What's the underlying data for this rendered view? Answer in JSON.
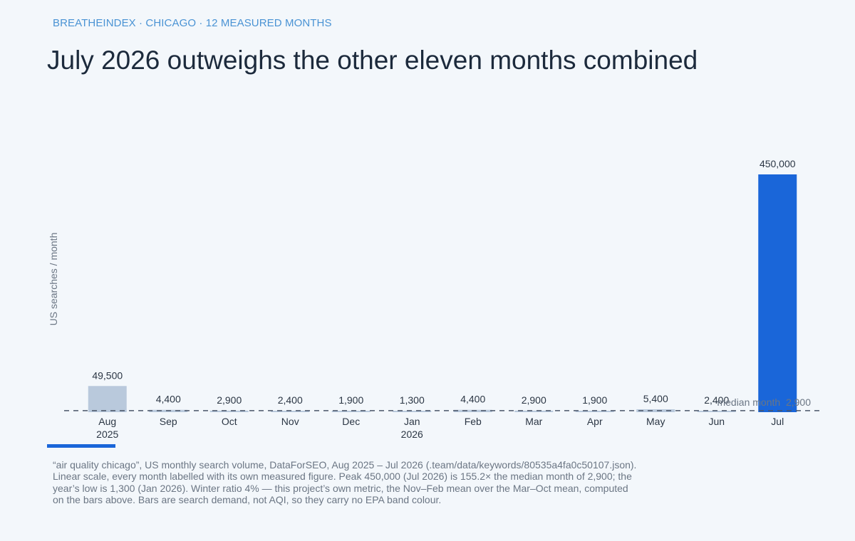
{
  "header": {
    "kicker": "BREATHEINDEX · CHICAGO · 12 MEASURED MONTHS",
    "title": "July 2026 outweighs the other eleven months combined"
  },
  "footnote": "“air quality chicago”, US monthly search volume, DataForSEO, Aug 2025 – Jul 2026 (.team/data/keywords/80535a4fa0c50107.json). Linear scale, every month labelled with its own measured figure. Peak 450,000 (Jul 2026) is 155.2× the median month of 2,900; the year’s low is 1,300 (Jan 2026). Winter ratio 4% — this project’s own metric, the Nov–Feb mean over the Mar–Oct mean, computed on the bars above. Bars are search demand, not AQI, so they carry no EPA band colour.",
  "colors": {
    "peak_bar": "#1a66d9",
    "other_bars": "#b9c9dc",
    "median_line": "#4a5568",
    "accent": "#1a66d9"
  },
  "chart_data": {
    "type": "bar",
    "ylabel": "US searches / month",
    "xlabel": "",
    "categories": [
      "Aug",
      "Sep",
      "Oct",
      "Nov",
      "Dec",
      "Jan",
      "Feb",
      "Mar",
      "Apr",
      "May",
      "Jun",
      "Jul"
    ],
    "category_sublabels": [
      "2025",
      "",
      "",
      "",
      "",
      "2026",
      "",
      "",
      "",
      "",
      "",
      ""
    ],
    "values": [
      49500,
      4400,
      2900,
      2400,
      1900,
      1300,
      4400,
      2900,
      1900,
      5400,
      2400,
      450000
    ],
    "value_labels": [
      "49,500",
      "4,400",
      "2,900",
      "2,400",
      "1,900",
      "1,300",
      "4,400",
      "2,900",
      "1,900",
      "5,400",
      "2,400",
      "450,000"
    ],
    "highlight_index": 11,
    "ylim": [
      0,
      450000
    ],
    "scale": "linear",
    "grid": false,
    "reference_line": {
      "value": 2900,
      "label": "median month",
      "value_label": "2,900"
    }
  }
}
